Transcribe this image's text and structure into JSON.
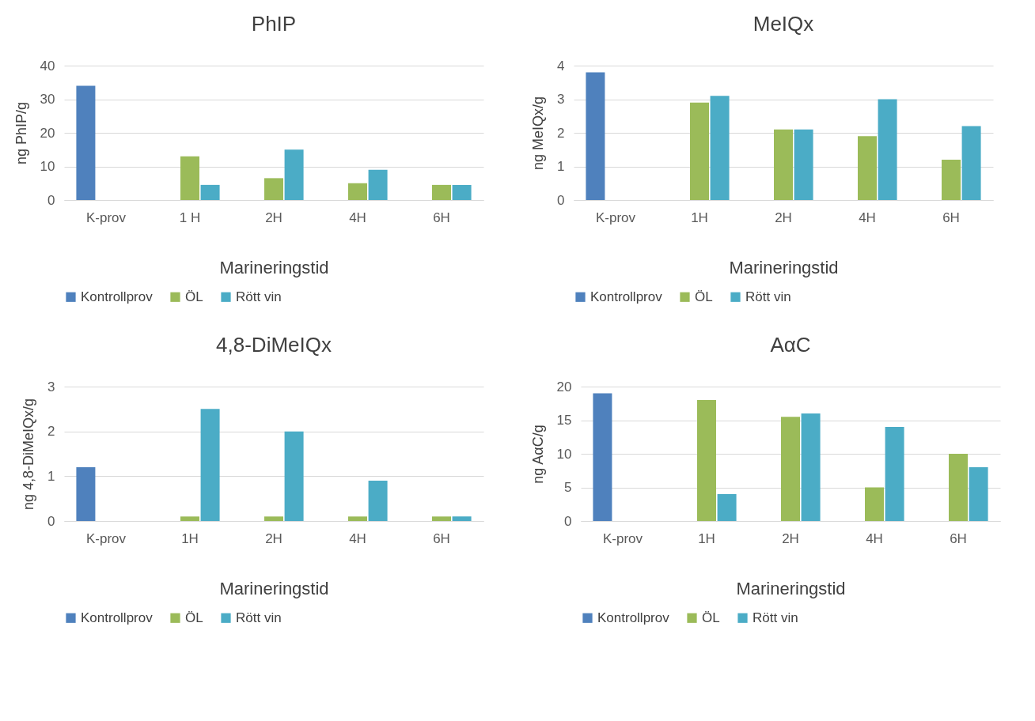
{
  "chart_data": [
    {
      "type": "bar",
      "title": "PhIP",
      "xlabel": "Marineringstid",
      "ylabel": "ng PhIP/g",
      "categories": [
        "K-prov",
        "1 H",
        "2H",
        "4H",
        "6H"
      ],
      "series": [
        {
          "name": "Kontrollprov",
          "color": "#4f81bd",
          "values": [
            34,
            null,
            null,
            null,
            null
          ]
        },
        {
          "name": "ÖL",
          "color": "#9bbb59",
          "values": [
            null,
            13,
            6.5,
            5,
            4.5
          ]
        },
        {
          "name": "Rött vin",
          "color": "#4bacc6",
          "values": [
            null,
            4.5,
            15,
            9,
            4.5
          ]
        }
      ],
      "ylim": [
        0,
        40
      ],
      "yticks": [
        0,
        10,
        20,
        30,
        40
      ],
      "grid": "y",
      "legend": "bottom"
    },
    {
      "type": "bar",
      "title": "MeIQx",
      "xlabel": "Marineringstid",
      "ylabel": "ng MeIQx/g",
      "categories": [
        "K-prov",
        "1H",
        "2H",
        "4H",
        "6H"
      ],
      "series": [
        {
          "name": "Kontrollprov",
          "color": "#4f81bd",
          "values": [
            3.8,
            null,
            null,
            null,
            null
          ]
        },
        {
          "name": "ÖL",
          "color": "#9bbb59",
          "values": [
            null,
            2.9,
            2.1,
            1.9,
            1.2
          ]
        },
        {
          "name": "Rött vin",
          "color": "#4bacc6",
          "values": [
            null,
            3.1,
            2.1,
            3.0,
            2.2
          ]
        }
      ],
      "ylim": [
        0,
        4
      ],
      "yticks": [
        0,
        1,
        2,
        3,
        4
      ],
      "grid": "y",
      "legend": "bottom"
    },
    {
      "type": "bar",
      "title": "4,8-DiMeIQx",
      "xlabel": "Marineringstid",
      "ylabel": "ng 4,8-DiMeIQx/g",
      "categories": [
        "K-prov",
        "1H",
        "2H",
        "4H",
        "6H"
      ],
      "series": [
        {
          "name": "Kontrollprov",
          "color": "#4f81bd",
          "values": [
            1.2,
            null,
            null,
            null,
            null
          ]
        },
        {
          "name": "ÖL",
          "color": "#9bbb59",
          "values": [
            null,
            0.1,
            0.1,
            0.1,
            0.1
          ]
        },
        {
          "name": "Rött vin",
          "color": "#4bacc6",
          "values": [
            null,
            2.5,
            2.0,
            0.9,
            0.1
          ]
        }
      ],
      "ylim": [
        0,
        3
      ],
      "yticks": [
        0,
        1,
        2,
        3
      ],
      "grid": "y",
      "legend": "bottom"
    },
    {
      "type": "bar",
      "title": "AαC",
      "xlabel": "Marineringstid",
      "ylabel": "ng AαC/g",
      "categories": [
        "K-prov",
        "1H",
        "2H",
        "4H",
        "6H"
      ],
      "series": [
        {
          "name": "Kontrollprov",
          "color": "#4f81bd",
          "values": [
            19,
            null,
            null,
            null,
            null
          ]
        },
        {
          "name": "ÖL",
          "color": "#9bbb59",
          "values": [
            null,
            18,
            15.5,
            5,
            10
          ]
        },
        {
          "name": "Rött vin",
          "color": "#4bacc6",
          "values": [
            null,
            4,
            16,
            14,
            8
          ]
        }
      ],
      "ylim": [
        0,
        20
      ],
      "yticks": [
        0,
        5,
        10,
        15,
        20
      ],
      "grid": "y",
      "legend": "bottom"
    }
  ]
}
